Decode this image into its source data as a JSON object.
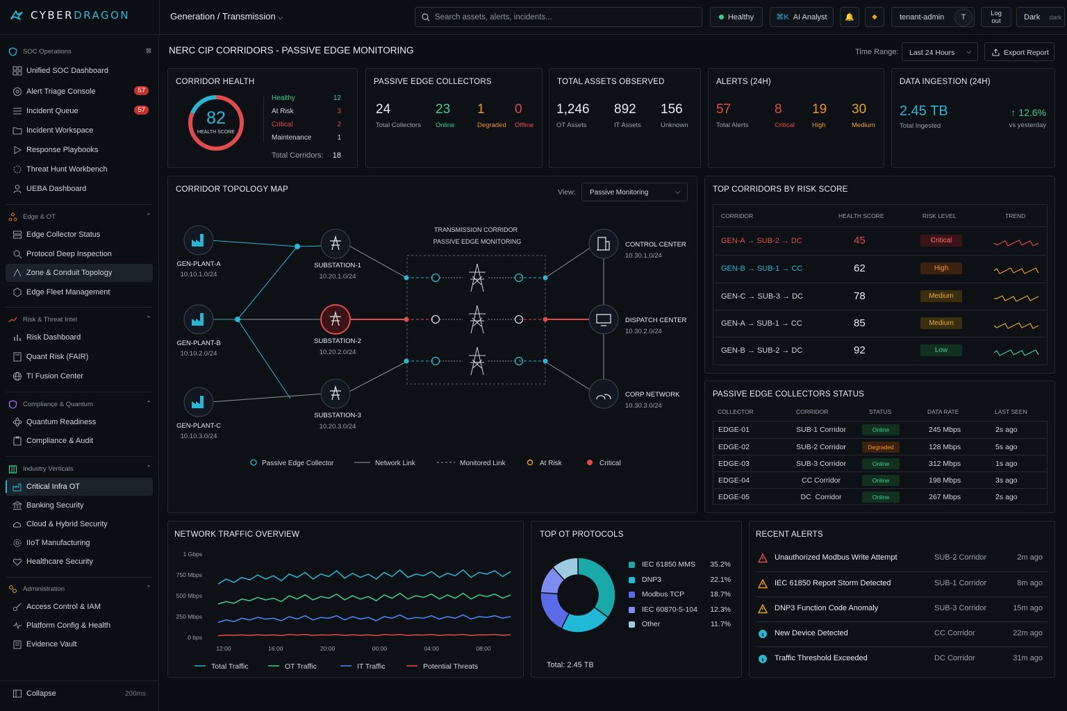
{
  "app": {
    "brand_a": "CYBER",
    "brand_b": "DRAGON",
    "breadcrumb": "Generation / Transmission"
  },
  "search": {
    "placeholder": "Search assets, alerts, incidents..."
  },
  "header": {
    "status": "Healthy",
    "ai": "AI Analyst",
    "tenant": "tenant-admin",
    "avatar": "T",
    "logout": "Log out",
    "theme": "Dark",
    "theme_toggle": "dark"
  },
  "sidebar": {
    "groups": [
      {
        "label": "SOC Operations"
      },
      {
        "label": "Edge & OT"
      },
      {
        "label": "Risk & Threat Intel"
      },
      {
        "label": "Compliance & Quantum"
      },
      {
        "label": "Industry Verticals"
      },
      {
        "label": "Administration"
      }
    ],
    "items": [
      {
        "label": "Unified SOC Dashboard"
      },
      {
        "label": "Alert Triage Console",
        "badge": "57"
      },
      {
        "label": "Incident Queue",
        "badge": "57"
      },
      {
        "label": "Incident Workspace"
      },
      {
        "label": "Response Playbooks"
      },
      {
        "label": "Threat Hunt Workbench"
      },
      {
        "label": "UEBA Dashboard"
      },
      {
        "label": "Edge Collector Status"
      },
      {
        "label": "Protocol Deep Inspection"
      },
      {
        "label": "Zone & Conduit Topology"
      },
      {
        "label": "Edge Fleet Management"
      },
      {
        "label": "Risk Dashboard"
      },
      {
        "label": "Quant Risk (FAIR)"
      },
      {
        "label": "TI Fusion Center"
      },
      {
        "label": "Quantum Readiness"
      },
      {
        "label": "Compliance & Audit"
      },
      {
        "label": "Critical Infra OT"
      },
      {
        "label": "Banking Security"
      },
      {
        "label": "Cloud & Hybrid Security"
      },
      {
        "label": "IIoT Manufacturing"
      },
      {
        "label": "Healthcare Security"
      },
      {
        "label": "Access Control & IAM"
      },
      {
        "label": "Platform Config & Health"
      },
      {
        "label": "Evidence Vault"
      }
    ],
    "collapse": "Collapse",
    "latency": "200ms"
  },
  "page": {
    "title": "NERC CIP CORRIDORS - PASSIVE EDGE MONITORING",
    "time_label": "Time Range:",
    "time_value": "Last 24 Hours",
    "export": "Export Report"
  },
  "health": {
    "title": "CORRIDOR HEALTH",
    "score": "82",
    "score_label": "HEALTH SCORE",
    "score_fraction": 0.82,
    "rows": [
      {
        "label": "Healthy",
        "value": "12",
        "color": "#3ecf8e"
      },
      {
        "label": "At Risk",
        "value": "3",
        "color": "#e04b4b"
      },
      {
        "label": "Critical",
        "value": "2",
        "color": "#e04b4b"
      },
      {
        "label": "Maintenance",
        "value": "1",
        "color": "#cfd6de"
      }
    ],
    "total_label": "Total Corridors:",
    "total": "18"
  },
  "collectors": {
    "title": "PASSIVE EDGE COLLECTORS",
    "stats": [
      {
        "value": "24",
        "label": "Total Collectors",
        "color": "#e6edf3"
      },
      {
        "value": "23",
        "label": "Online",
        "color": "#3ecf8e"
      },
      {
        "value": "1",
        "label": "Degraded",
        "color": "#f0932b"
      },
      {
        "value": "0",
        "label": "Offline",
        "color": "#e04b4b"
      }
    ]
  },
  "assets": {
    "title": "TOTAL ASSETS OBSERVED",
    "stats": [
      {
        "value": "1,246",
        "label": "OT Assets"
      },
      {
        "value": "892",
        "label": "IT Assets"
      },
      {
        "value": "156",
        "label": "Unknown"
      }
    ]
  },
  "alerts24": {
    "title": "ALERTS (24H)",
    "stats": [
      {
        "value": "57",
        "label": "Total Alerts",
        "color": "#e04b4b",
        "lcolor": "#98a1ab"
      },
      {
        "value": "8",
        "label": "Critical",
        "color": "#e04b4b",
        "lcolor": "#e04b4b"
      },
      {
        "value": "19",
        "label": "High",
        "color": "#f0932b",
        "lcolor": "#f0932b"
      },
      {
        "value": "30",
        "label": "Medium",
        "color": "#e5a52b",
        "lcolor": "#e5a52b"
      }
    ]
  },
  "ingest": {
    "title": "DATA INGESTION (24H)",
    "value": "2.45 TB",
    "label": "Total Ingested",
    "delta": "↑ 12.6%",
    "delta_label": "vs yesterday"
  },
  "topo": {
    "title": "CORRIDOR TOPOLOGY MAP",
    "view_label": "View:",
    "view_value": "Passive Monitoring",
    "corridor_title_1": "TRANSMISSION CORRIDOR",
    "corridor_title_2": "PASSIVE EDGE MONITORING",
    "gens": [
      {
        "name": "GEN-PLANT-A",
        "ip": "10.10.1.0/24"
      },
      {
        "name": "GEN-PLANT-B",
        "ip": "10.10.2.0/24"
      },
      {
        "name": "GEN-PLANT-C",
        "ip": "10.10.3.0/24"
      }
    ],
    "subs": [
      {
        "name": "SUBSTATION-1",
        "ip": "10.20.1.0/24"
      },
      {
        "name": "SUBSTATION-2",
        "ip": "10.20.2.0/24"
      },
      {
        "name": "SUBSTATION-3",
        "ip": "10.20.3.0/24"
      }
    ],
    "dests": [
      {
        "name": "CONTROL CENTER",
        "ip": "10.30.1.0/24"
      },
      {
        "name": "DISPATCH CENTER",
        "ip": "10.30.2.0/24"
      },
      {
        "name": "CORP NETWORK",
        "ip": "10.30.3.0/24"
      }
    ],
    "legend": [
      "Passive Edge Collector",
      "Network Link",
      "Monitored Link",
      "At Risk",
      "Critical"
    ]
  },
  "risk": {
    "title": "TOP CORRIDORS BY RISK SCORE",
    "headers": [
      "CORRIDOR",
      "HEALTH SCORE",
      "RISK LEVEL",
      "TREND"
    ],
    "rows": [
      {
        "corridor": "GEN-A → SUB-2 → DC",
        "score": "45",
        "level": "Critical",
        "ccolor": "#e04b4b",
        "lvbg": "#3a1416",
        "lvfg": "#ff6b6b",
        "trend": "#e04b4b"
      },
      {
        "corridor": "GEN-B → SUB-1 → CC",
        "score": "62",
        "level": "High",
        "ccolor": "#2ab6d3",
        "lvbg": "#3b2210",
        "lvfg": "#f0932b",
        "trend": "#f0932b"
      },
      {
        "corridor": "GEN-C → SUB-3 → DC",
        "score": "78",
        "level": "Medium",
        "ccolor": "#cfd6de",
        "lvbg": "#3a2e10",
        "lvfg": "#e5a52b",
        "trend": "#e5a52b"
      },
      {
        "corridor": "GEN-A → SUB-1 → CC",
        "score": "85",
        "level": "Medium",
        "ccolor": "#cfd6de",
        "lvbg": "#3a2e10",
        "lvfg": "#e5a52b",
        "trend": "#e5a52b"
      },
      {
        "corridor": "GEN-B → SUB-2 → DC",
        "score": "92",
        "level": "Low",
        "ccolor": "#cfd6de",
        "lvbg": "#12301f",
        "lvfg": "#3ecf8e",
        "trend": "#3ecf8e"
      }
    ]
  },
  "pec": {
    "title": "PASSIVE EDGE COLLECTORS STATUS",
    "headers": [
      "COLLECTOR",
      "CORRIDOR",
      "STATUS",
      "DATA RATE",
      "LAST SEEN"
    ],
    "rows": [
      {
        "c": "EDGE-01",
        "corr": "SUB-1 Corridor",
        "status": "Online",
        "rate": "245 Mbps",
        "seen": "2s ago",
        "bg": "#12301f",
        "fg": "#3ecf8e"
      },
      {
        "c": "EDGE-02",
        "corr": "SUB-2 Corridor",
        "status": "Degraded",
        "rate": "128 Mbps",
        "seen": "5s ago",
        "bg": "#3b2210",
        "fg": "#f0932b"
      },
      {
        "c": "EDGE-03",
        "corr": "SUB-3 Corridor",
        "status": "Online",
        "rate": "312 Mbps",
        "seen": "1s ago",
        "bg": "#12301f",
        "fg": "#3ecf8e"
      },
      {
        "c": "EDGE-04",
        "corr": "CC Corridor",
        "status": "Online",
        "rate": "198 Mbps",
        "seen": "3s ago",
        "bg": "#12301f",
        "fg": "#3ecf8e"
      },
      {
        "c": "EDGE-05",
        "corr": "DC  Corridor",
        "status": "Online",
        "rate": "267 Mbps",
        "seen": "2s ago",
        "bg": "#12301f",
        "fg": "#3ecf8e"
      }
    ]
  },
  "traffic": {
    "title": "NETWORK TRAFFIC OVERVIEW"
  },
  "chart_data": {
    "type": "line",
    "title": "NETWORK TRAFFIC OVERVIEW",
    "x_ticks": [
      "12:00",
      "16:00",
      "20:00",
      "00:00",
      "04:00",
      "08:00"
    ],
    "y_ticks": [
      "1 Gbps",
      "750 Mbps",
      "500 Mbps",
      "250 Mbps",
      "0 bps"
    ],
    "ylim_mbps": [
      0,
      1000
    ],
    "series": [
      {
        "name": "Total Traffic",
        "color": "#2ab6d3",
        "values": [
          640,
          700,
          660,
          720,
          690,
          750,
          700,
          740,
          680,
          760,
          720,
          780,
          700,
          760,
          730,
          800,
          710,
          770,
          720,
          760,
          700,
          780,
          730,
          810,
          720,
          760,
          740,
          790,
          720,
          770,
          740,
          810,
          720,
          780,
          760,
          800,
          730,
          790
        ]
      },
      {
        "name": "OT Traffic",
        "color": "#3ecf8e",
        "values": [
          400,
          430,
          410,
          460,
          440,
          480,
          450,
          470,
          430,
          500,
          460,
          510,
          450,
          490,
          470,
          520,
          450,
          500,
          460,
          490,
          440,
          510,
          470,
          530,
          460,
          500,
          480,
          520,
          460,
          510,
          470,
          530,
          460,
          510,
          490,
          520,
          470,
          510
        ]
      },
      {
        "name": "IT Traffic",
        "color": "#4a8bff",
        "values": [
          180,
          210,
          190,
          230,
          210,
          240,
          220,
          230,
          200,
          250,
          220,
          260,
          210,
          240,
          230,
          260,
          210,
          250,
          220,
          240,
          200,
          250,
          230,
          270,
          220,
          240,
          230,
          260,
          220,
          250,
          230,
          270,
          220,
          250,
          240,
          260,
          230,
          250
        ]
      },
      {
        "name": "Potential Threats",
        "color": "#e04b4b",
        "values": [
          20,
          28,
          25,
          30,
          24,
          32,
          26,
          30,
          22,
          34,
          28,
          36,
          24,
          30,
          28,
          34,
          24,
          32,
          26,
          30,
          22,
          34,
          28,
          36,
          24,
          30,
          28,
          34,
          24,
          32,
          28,
          36,
          24,
          32,
          30,
          34,
          26,
          32
        ]
      }
    ]
  },
  "protocols": {
    "title": "TOP OT PROTOCOLS",
    "total": "Total: 2.45 TB",
    "items": [
      {
        "name": "IEC 61850 MMS",
        "pct": "35.2%",
        "value": 35.2,
        "color": "#1aa8a8"
      },
      {
        "name": "DNP3",
        "pct": "22.1%",
        "value": 22.1,
        "color": "#22b8d8"
      },
      {
        "name": "Modbus TCP",
        "pct": "18.7%",
        "value": 18.7,
        "color": "#5b6be8"
      },
      {
        "name": "IEC 60870-5-104",
        "pct": "12.3%",
        "value": 12.3,
        "color": "#7c8cf0"
      },
      {
        "name": "Other",
        "pct": "11.7%",
        "value": 11.7,
        "color": "#9ccbe0"
      }
    ]
  },
  "recent": {
    "title": "RECENT ALERTS",
    "items": [
      {
        "title": "Unauthorized Modbus Write Attempt",
        "corridor": "SUB-2 Corridor",
        "time": "2m ago",
        "icon": "warning-icon",
        "color": "#e04b4b"
      },
      {
        "title": "IEC 61850 Report Storm Detected",
        "corridor": "SUB-1 Corridor",
        "time": "8m ago",
        "icon": "warning-icon",
        "color": "#f0932b"
      },
      {
        "title": "DNP3 Function Code Anomaly",
        "corridor": "SUB-3 Corridor",
        "time": "15m ago",
        "icon": "warning-icon",
        "color": "#e5a52b"
      },
      {
        "title": "New Device Detected",
        "corridor": "CC Corridor",
        "time": "22m ago",
        "icon": "info-icon",
        "color": "#2ab6d3"
      },
      {
        "title": "Traffic Threshold Exceeded",
        "corridor": "DC Corridor",
        "time": "31m ago",
        "icon": "info-icon",
        "color": "#2ab6d3"
      }
    ]
  }
}
